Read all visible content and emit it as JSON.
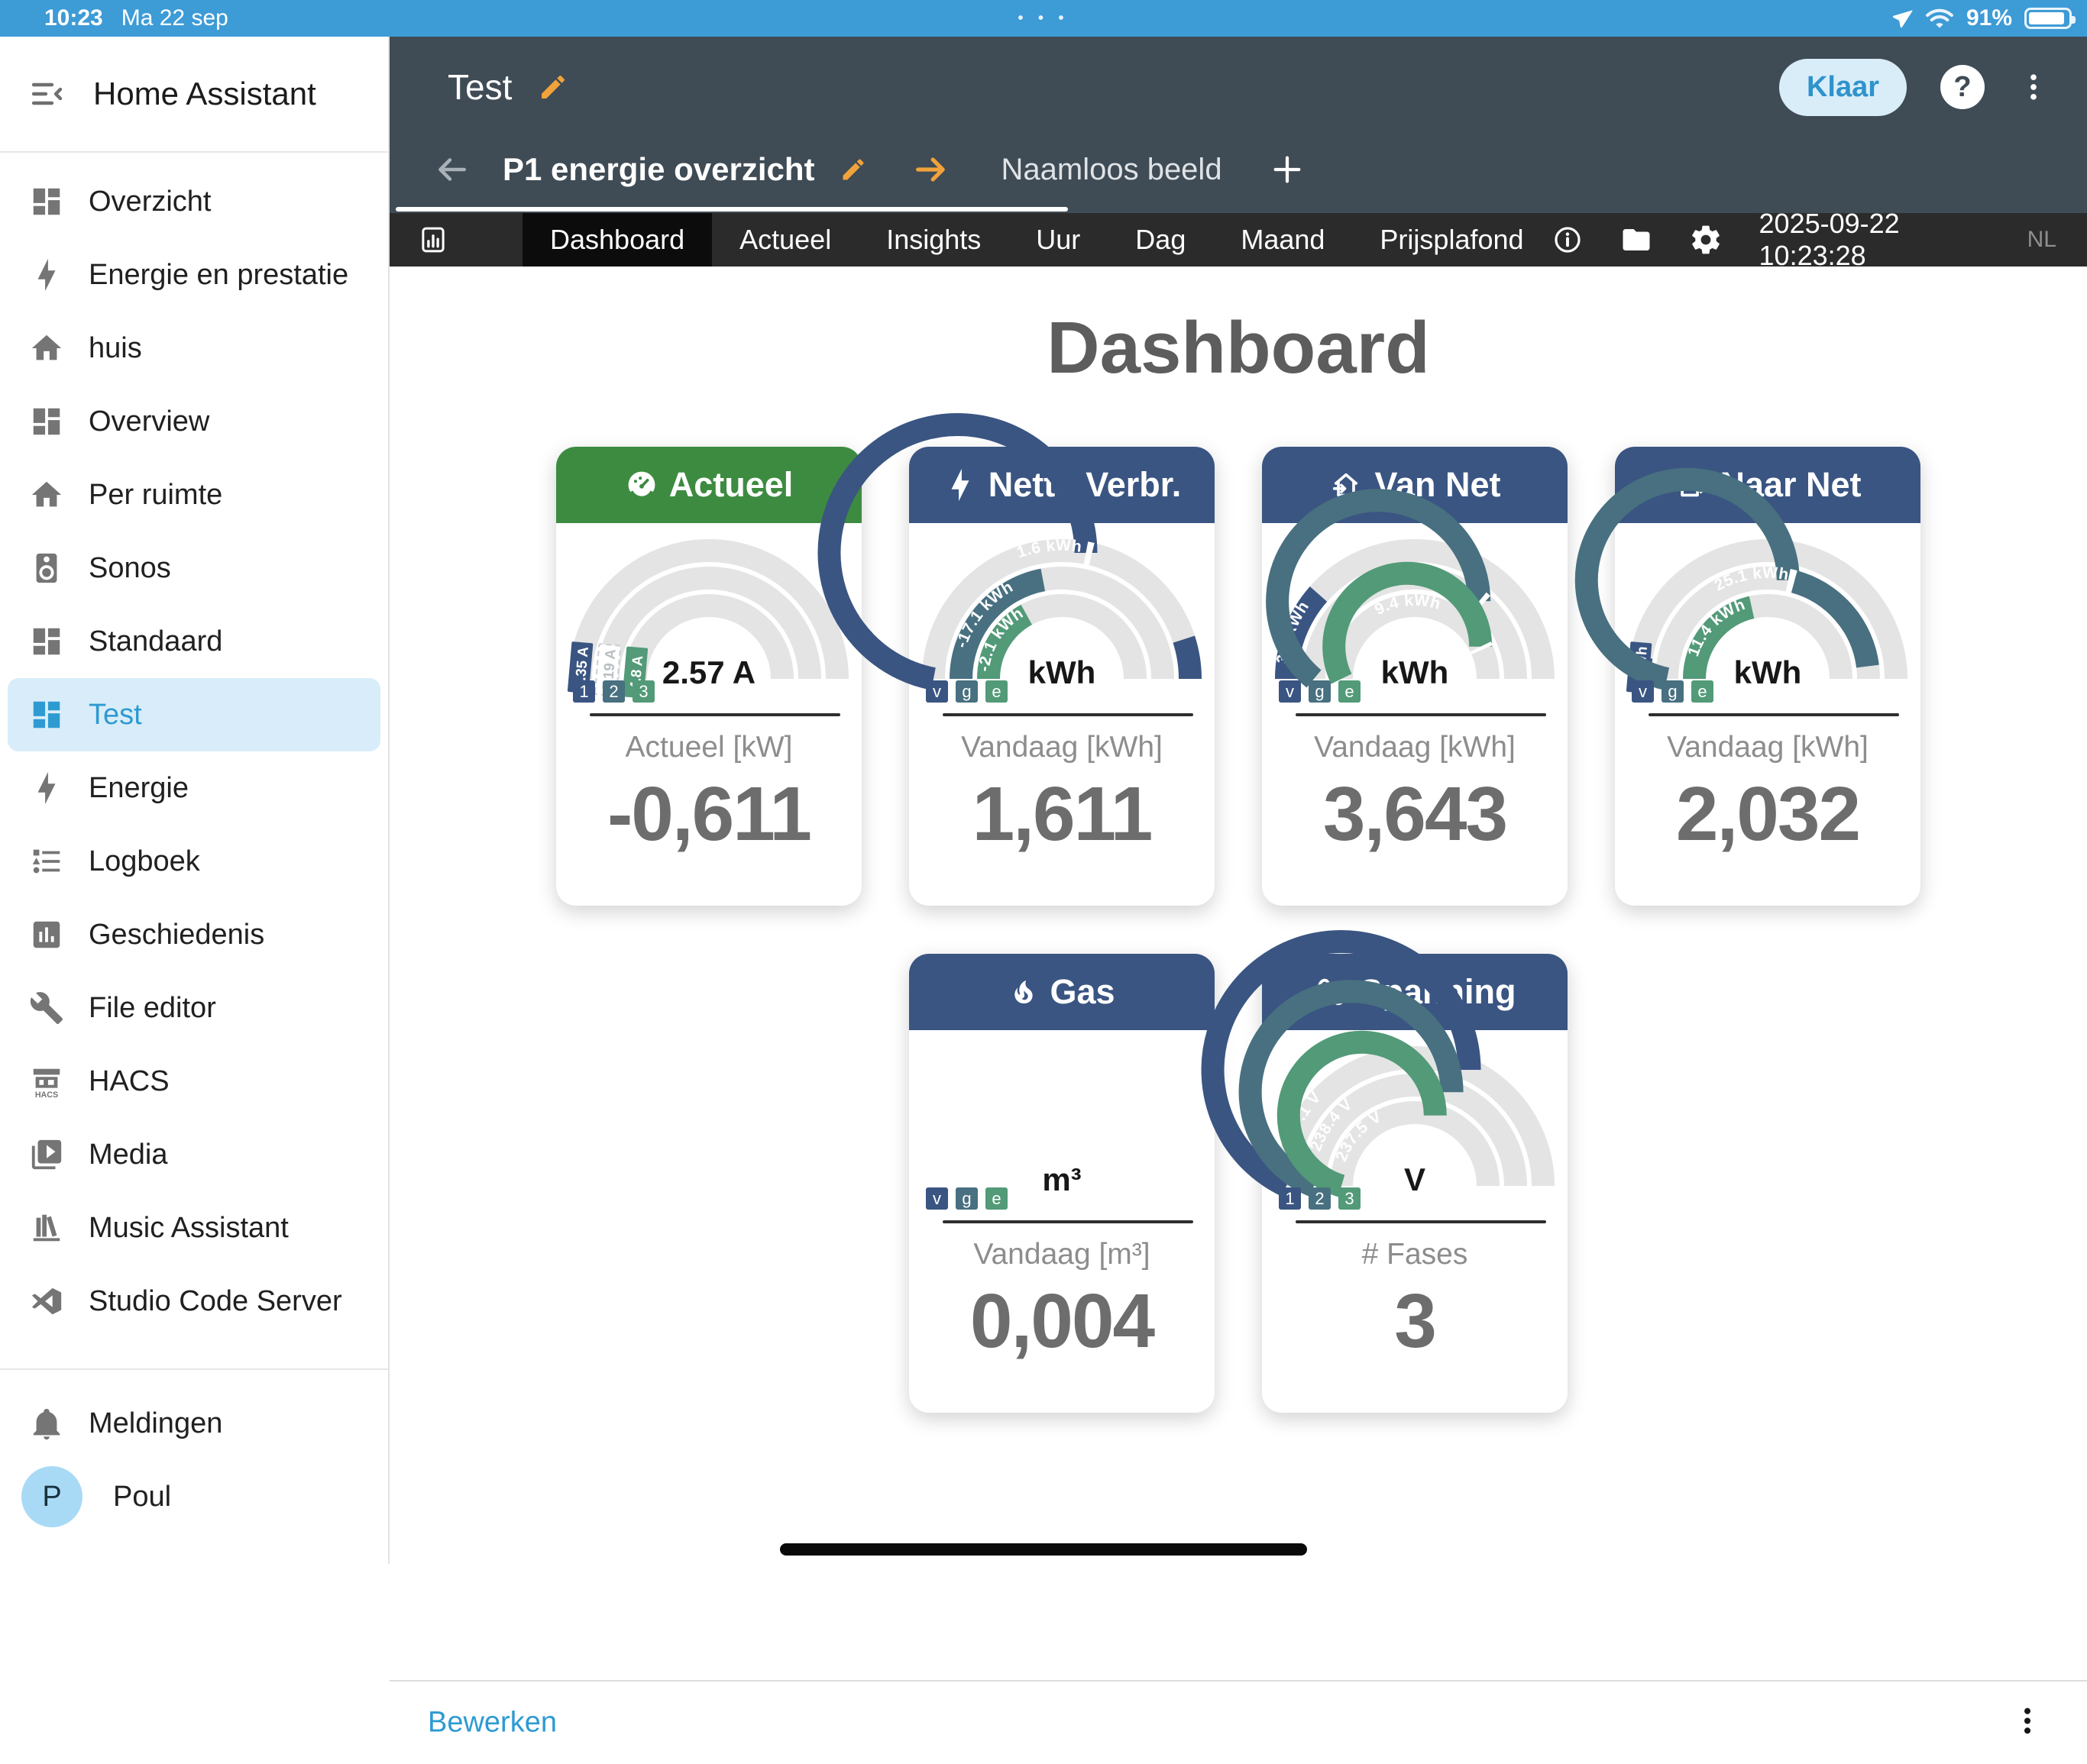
{
  "status_bar": {
    "time": "10:23",
    "date": "Ma 22 sep",
    "battery": "91%",
    "multitask_dots": "• • •"
  },
  "sidebar": {
    "title": "Home Assistant",
    "items": [
      {
        "label": "Overzicht",
        "icon": "view-dashboard",
        "selected": false
      },
      {
        "label": "Energie en prestatie",
        "icon": "flash",
        "selected": false
      },
      {
        "label": "huis",
        "icon": "home",
        "selected": false
      },
      {
        "label": "Overview",
        "icon": "view-dashboard",
        "selected": false
      },
      {
        "label": "Per ruimte",
        "icon": "home",
        "selected": false
      },
      {
        "label": "Sonos",
        "icon": "speaker",
        "selected": false
      },
      {
        "label": "Standaard",
        "icon": "view-dashboard",
        "selected": false
      },
      {
        "label": "Test",
        "icon": "view-dashboard",
        "selected": true
      },
      {
        "label": "Energie",
        "icon": "flash",
        "selected": false
      },
      {
        "label": "Logboek",
        "icon": "list",
        "selected": false
      },
      {
        "label": "Geschiedenis",
        "icon": "chart-box",
        "selected": false
      },
      {
        "label": "File editor",
        "icon": "wrench",
        "selected": false
      },
      {
        "label": "HACS",
        "icon": "hacs",
        "selected": false
      },
      {
        "label": "Media",
        "icon": "play-box",
        "selected": false
      },
      {
        "label": "Music Assistant",
        "icon": "bookshelf",
        "selected": false
      },
      {
        "label": "Studio Code Server",
        "icon": "vscode",
        "selected": false
      }
    ],
    "notifications": {
      "label": "Meldingen",
      "icon": "bell"
    },
    "profile": {
      "name": "Poul",
      "initial": "P"
    }
  },
  "header": {
    "title": "Test",
    "done_button": "Klaar",
    "help_label": "?",
    "view": {
      "current": "P1 energie overzicht",
      "next": "Naamloos beeld"
    }
  },
  "tabbar": {
    "tabs": [
      "Dashboard",
      "Actueel",
      "Insights",
      "Uur",
      "Dag",
      "Maand",
      "Prijsplafond"
    ],
    "active_tab": "Dashboard",
    "timestamp": "2025-09-22 10:23:28",
    "locale": "NL"
  },
  "page": {
    "title": "Dashboard"
  },
  "cards": [
    {
      "title": "Actueel",
      "icon": "gauge",
      "header_color": "green",
      "center_text": "2.57 A",
      "badges": [
        {
          "text": "1",
          "color": "blue"
        },
        {
          "text": "2",
          "color": "steel"
        },
        {
          "text": "3",
          "color": "green"
        }
      ],
      "footer_label": "Actueel [kW]",
      "value": "-0,611",
      "rings": [
        {
          "segments": [],
          "chip": {
            "text": "2.35 A",
            "color": "blue"
          }
        },
        {
          "segments": [],
          "chip": {
            "text": "0.19 A",
            "color": "dashed"
          }
        },
        {
          "segments": [],
          "chip": {
            "text": "4.8 A",
            "color": "green"
          }
        }
      ]
    },
    {
      "title": "Netto Verbr.",
      "icon": "flash",
      "header_color": "blue",
      "center_text": "kWh",
      "badges": [
        {
          "text": "v",
          "color": "blue"
        },
        {
          "text": "g",
          "color": "steel"
        },
        {
          "text": "e",
          "color": "green"
        }
      ],
      "footer_label": "Vandaag [kWh]",
      "value": "1,611",
      "rings": [
        {
          "segments": [
            [
              0,
              0.56,
              "blue"
            ],
            [
              0.56,
              0.575,
              "white"
            ],
            [
              0.9,
              1,
              "blue"
            ]
          ],
          "label": {
            "text": "1.6 kWh",
            "at": 0.47
          }
        },
        {
          "segments": [
            [
              0,
              0.44,
              "steel"
            ]
          ],
          "label": {
            "text": "-17.1 kWh",
            "at": 0.22
          }
        },
        {
          "segments": [
            [
              0,
              0.34,
              "green"
            ]
          ],
          "label": {
            "text": "-2.1 kWh",
            "at": 0.18
          }
        }
      ]
    },
    {
      "title": "Van Net",
      "icon": "home-import",
      "header_color": "blue",
      "center_text": "kWh",
      "badges": [
        {
          "text": "v",
          "color": "blue"
        },
        {
          "text": "g",
          "color": "steel"
        },
        {
          "text": "e",
          "color": "green"
        }
      ],
      "footer_label": "Vandaag [kWh]",
      "value": "3,643",
      "rings": [
        {
          "segments": [
            [
              0,
              0.23,
              "blue"
            ]
          ],
          "label": {
            "text": "3.6 kWh",
            "at": 0.115
          }
        },
        {
          "segments": [
            [
              0,
              0.72,
              "steel"
            ],
            [
              0.72,
              0.735,
              "white"
            ]
          ],
          "label": {
            "text": "8.0 kWh",
            "at": 0.41
          }
        },
        {
          "segments": [
            [
              0,
              0.855,
              "green"
            ],
            [
              0.855,
              0.87,
              "white"
            ]
          ],
          "label": {
            "text": "9.4 kWh",
            "at": 0.47
          }
        }
      ]
    },
    {
      "title": "Naar Net",
      "icon": "home-export",
      "header_color": "blue",
      "center_text": "kWh",
      "badges": [
        {
          "text": "v",
          "color": "blue"
        },
        {
          "text": "g",
          "color": "steel"
        },
        {
          "text": "e",
          "color": "green"
        }
      ],
      "footer_label": "Vandaag [kWh]",
      "value": "2,032",
      "rings": [
        {
          "segments": [
            [
              0,
              0.055,
              "blue"
            ]
          ],
          "chip": {
            "text": "0 kWh",
            "color": "blue"
          }
        },
        {
          "segments": [
            [
              0,
              0.565,
              "steel"
            ],
            [
              0.565,
              0.585,
              "white"
            ],
            [
              0.585,
              0.96,
              "steel"
            ]
          ],
          "label": {
            "text": "25.1 kWh",
            "at": 0.45
          }
        },
        {
          "segments": [
            [
              0,
              0.43,
              "green"
            ]
          ],
          "label": {
            "text": "11.4 kWh",
            "at": 0.25
          }
        }
      ]
    },
    {
      "title": "Gas",
      "icon": "fire",
      "header_color": "blue",
      "center_text": "m³",
      "badges": [
        {
          "text": "v",
          "color": "blue"
        },
        {
          "text": "g",
          "color": "steel"
        },
        {
          "text": "e",
          "color": "green"
        }
      ],
      "footer_label": "Vandaag [m³]",
      "value": "0,004",
      "rings": []
    },
    {
      "title": "Spanning",
      "icon": "sine-wave",
      "header_color": "blue",
      "center_text": "V",
      "badges": [
        {
          "text": "1",
          "color": "blue"
        },
        {
          "text": "2",
          "color": "steel"
        },
        {
          "text": "3",
          "color": "green"
        }
      ],
      "footer_label": "# Fases",
      "value": "3",
      "rings": [
        {
          "segments": [
            [
              0,
              0.64,
              "blue"
            ]
          ],
          "label": {
            "text": "237.1 V",
            "at": 0.17
          }
        },
        {
          "segments": [
            [
              0,
              0.62,
              "steel"
            ]
          ],
          "label": {
            "text": "238.4 V",
            "at": 0.2
          }
        },
        {
          "segments": [
            [
              0,
              0.59,
              "green"
            ]
          ],
          "label": {
            "text": "237.5 V",
            "at": 0.23
          }
        }
      ]
    }
  ],
  "footer": {
    "edit_label": "Bewerken"
  },
  "colors": {
    "statusbar_blue": "#3d9bd6",
    "header_slate": "#3f4b55",
    "tabbar_dark": "#2b2b2b",
    "tab_active": "#0c0c0c",
    "accent_blue": "#2e9ad2",
    "pencil_orange": "#f0a23b",
    "card_green": "#3d8b40",
    "card_blue": "#3a5582",
    "arc_steel": "#487080",
    "arc_green": "#529a78",
    "arc_track": "#e4e4e4",
    "value_grey": "#6d6d6d"
  }
}
